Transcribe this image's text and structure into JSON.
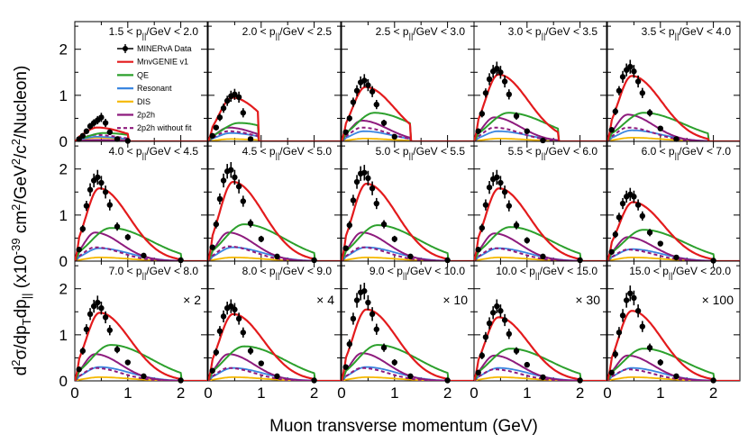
{
  "chart_data": {
    "type": "line",
    "xlabel": "Muon transverse momentum (GeV)",
    "ylabel_parts": [
      "d",
      "2",
      "σ/dp",
      "T",
      "dp",
      "||",
      " (x10",
      "-39",
      " cm",
      "2",
      "/GeV",
      "2",
      "/c",
      "2",
      "/Nucleon)"
    ],
    "x_ticks": [
      "0",
      "1",
      "2"
    ],
    "y_ticks": [
      "0",
      "1",
      "2"
    ],
    "xlim": [
      0,
      2.5
    ],
    "ylim": [
      0,
      2.6
    ],
    "colors": {
      "data": "#000000",
      "mnvgenie": "#e31a1c",
      "qe": "#2ca02c",
      "resonant": "#3a86e0",
      "dis": "#f5b800",
      "twop2h": "#8e1b7d",
      "twop2h_nofit": "#8e1b7d"
    },
    "legend": {
      "placement": "inside first panel, left",
      "entries": [
        {
          "key": "data",
          "label": "MINERvA Data"
        },
        {
          "key": "mnvgenie",
          "label": "MnvGENIE v1"
        },
        {
          "key": "qe",
          "label": "QE"
        },
        {
          "key": "resonant",
          "label": "Resonant"
        },
        {
          "key": "dis",
          "label": "DIS"
        },
        {
          "key": "twop2h",
          "label": "2p2h"
        },
        {
          "key": "twop2h_nofit",
          "label": "2p2h without fit"
        }
      ]
    },
    "x_points": [
      0.08,
      0.15,
      0.22,
      0.29,
      0.36,
      0.43,
      0.5,
      0.58,
      0.66,
      0.8,
      1.0,
      1.3,
      2.0
    ],
    "panels": [
      {
        "label": "1.5 < p",
        "sub": "||",
        "label2": "/GeV < 2.0",
        "scale": "",
        "xmax": 1.0,
        "data": [
          0.05,
          0.12,
          0.22,
          0.33,
          0.4,
          0.46,
          0.52,
          0.4,
          0.2,
          0.05,
          0.01,
          0.0,
          0.0
        ],
        "err": [
          0.03,
          0.04,
          0.05,
          0.07,
          0.08,
          0.09,
          0.1,
          0.09,
          0.06,
          0.03,
          0.01,
          0.0,
          0.0
        ],
        "peak": [
          0.3,
          0.18,
          0.1,
          0.08,
          0.03,
          0.14
        ],
        "pk": [
          0.42,
          0.55,
          0.4,
          0.4,
          0.4,
          0.38
        ]
      },
      {
        "label": "2.0 < p",
        "sub": "||",
        "label2": "/GeV < 2.5",
        "scale": "",
        "xmax": 0.95,
        "data": [
          0.12,
          0.3,
          0.52,
          0.72,
          0.88,
          0.98,
          1.02,
          0.96,
          0.62,
          0.05,
          0.0,
          0.0,
          0.0
        ],
        "err": [
          0.04,
          0.06,
          0.08,
          0.1,
          0.11,
          0.12,
          0.12,
          0.12,
          0.1,
          0.03,
          0.0,
          0.0,
          0.0
        ],
        "peak": [
          0.95,
          0.4,
          0.18,
          0.05,
          0.3,
          0.22
        ],
        "pk": [
          0.45,
          0.58,
          0.42,
          0.42,
          0.38,
          0.38
        ]
      },
      {
        "label": "2.5 < p",
        "sub": "||",
        "label2": "/GeV < 3.0",
        "scale": "",
        "xmax": 1.3,
        "data": [
          0.2,
          0.5,
          0.85,
          1.1,
          1.28,
          1.32,
          1.22,
          1.08,
          0.8,
          0.4,
          0.1,
          0.0,
          0.0
        ],
        "err": [
          0.05,
          0.07,
          0.1,
          0.12,
          0.13,
          0.14,
          0.13,
          0.12,
          0.1,
          0.07,
          0.03,
          0.0,
          0.0
        ],
        "peak": [
          1.18,
          0.62,
          0.22,
          0.06,
          0.45,
          0.3
        ],
        "pk": [
          0.45,
          0.62,
          0.42,
          0.42,
          0.38,
          0.38
        ]
      },
      {
        "label": "3.0 < p",
        "sub": "||",
        "label2": "/GeV < 3.5",
        "scale": "",
        "xmax": 1.6,
        "data": [
          0.22,
          0.6,
          1.05,
          1.35,
          1.52,
          1.58,
          1.5,
          1.3,
          1.02,
          0.55,
          0.22,
          0.02,
          0.0
        ],
        "err": [
          0.05,
          0.08,
          0.1,
          0.13,
          0.14,
          0.15,
          0.14,
          0.13,
          0.11,
          0.08,
          0.05,
          0.02,
          0.0
        ],
        "peak": [
          1.45,
          0.62,
          0.22,
          0.06,
          0.52,
          0.3
        ],
        "pk": [
          0.46,
          0.65,
          0.45,
          0.45,
          0.38,
          0.38
        ]
      },
      {
        "label": "3.5 < p",
        "sub": "||",
        "label2": "/GeV < 4.0",
        "scale": "",
        "xmax": 1.9,
        "data": [
          0.25,
          0.65,
          1.1,
          1.4,
          1.55,
          1.62,
          1.52,
          1.3,
          1.05,
          0.62,
          0.28,
          0.05,
          0.0
        ],
        "err": [
          0.05,
          0.08,
          0.1,
          0.13,
          0.14,
          0.15,
          0.14,
          0.13,
          0.11,
          0.08,
          0.05,
          0.03,
          0.0
        ],
        "peak": [
          1.42,
          0.62,
          0.24,
          0.08,
          0.58,
          0.3
        ],
        "pk": [
          0.46,
          0.68,
          0.46,
          0.46,
          0.38,
          0.38
        ]
      },
      {
        "label": "4.0 < p",
        "sub": "||",
        "label2": "/GeV < 4.5",
        "scale": "",
        "xmax": 2.0,
        "data": [
          0.25,
          0.7,
          1.2,
          1.55,
          1.75,
          1.82,
          1.7,
          1.5,
          1.22,
          0.75,
          0.52,
          0.12,
          0.02
        ],
        "err": [
          0.05,
          0.08,
          0.11,
          0.14,
          0.15,
          0.16,
          0.15,
          0.14,
          0.12,
          0.09,
          0.07,
          0.04,
          0.02
        ],
        "peak": [
          1.58,
          0.72,
          0.28,
          0.08,
          0.62,
          0.3
        ],
        "pk": [
          0.46,
          0.68,
          0.46,
          0.46,
          0.38,
          0.38
        ]
      },
      {
        "label": "4.5 < p",
        "sub": "||",
        "label2": "/GeV < 5.0",
        "scale": "",
        "xmax": 2.0,
        "data": [
          0.3,
          0.8,
          1.35,
          1.75,
          1.95,
          1.98,
          1.82,
          1.62,
          1.3,
          0.82,
          0.48,
          0.1,
          0.02
        ],
        "err": [
          0.05,
          0.09,
          0.12,
          0.15,
          0.16,
          0.17,
          0.16,
          0.15,
          0.12,
          0.09,
          0.07,
          0.04,
          0.02
        ],
        "peak": [
          1.72,
          0.8,
          0.3,
          0.08,
          0.62,
          0.32
        ],
        "pk": [
          0.47,
          0.68,
          0.46,
          0.46,
          0.38,
          0.38
        ]
      },
      {
        "label": "5.0 < p",
        "sub": "||",
        "label2": "/GeV < 5.5",
        "scale": "",
        "xmax": 2.0,
        "data": [
          0.28,
          0.78,
          1.32,
          1.72,
          1.9,
          1.92,
          1.8,
          1.58,
          1.25,
          0.8,
          0.48,
          0.1,
          0.02
        ],
        "err": [
          0.05,
          0.09,
          0.12,
          0.15,
          0.16,
          0.17,
          0.16,
          0.15,
          0.12,
          0.09,
          0.07,
          0.04,
          0.02
        ],
        "peak": [
          1.68,
          0.78,
          0.3,
          0.08,
          0.62,
          0.3
        ],
        "pk": [
          0.47,
          0.68,
          0.46,
          0.46,
          0.38,
          0.38
        ]
      },
      {
        "label": "5.5 < p",
        "sub": "||",
        "label2": "/GeV < 6.0",
        "scale": "",
        "xmax": 2.0,
        "data": [
          0.25,
          0.72,
          1.22,
          1.6,
          1.78,
          1.82,
          1.7,
          1.5,
          1.2,
          0.78,
          0.45,
          0.1,
          0.02
        ],
        "err": [
          0.05,
          0.09,
          0.12,
          0.14,
          0.15,
          0.16,
          0.15,
          0.14,
          0.12,
          0.09,
          0.07,
          0.04,
          0.02
        ],
        "peak": [
          1.58,
          0.74,
          0.28,
          0.08,
          0.6,
          0.28
        ],
        "pk": [
          0.47,
          0.68,
          0.46,
          0.46,
          0.38,
          0.38
        ]
      },
      {
        "label": "6.0 < p",
        "sub": "||",
        "label2": "/GeV < 7.0",
        "scale": "",
        "xmax": 2.0,
        "data": [
          0.2,
          0.58,
          0.95,
          1.25,
          1.4,
          1.45,
          1.4,
          1.22,
          0.98,
          0.62,
          0.38,
          0.08,
          0.01
        ],
        "err": [
          0.04,
          0.08,
          0.1,
          0.12,
          0.13,
          0.14,
          0.13,
          0.12,
          0.1,
          0.08,
          0.06,
          0.03,
          0.01
        ],
        "peak": [
          1.28,
          0.68,
          0.26,
          0.08,
          0.52,
          0.25
        ],
        "pk": [
          0.48,
          0.68,
          0.46,
          0.46,
          0.38,
          0.38
        ]
      },
      {
        "label": "7.0 < p",
        "sub": "||",
        "label2": "/GeV < 8.0",
        "scale": "× 2",
        "xmax": 2.0,
        "data": [
          0.25,
          0.65,
          1.12,
          1.45,
          1.62,
          1.7,
          1.58,
          1.38,
          1.1,
          0.68,
          0.4,
          0.1,
          0.01
        ],
        "err": [
          0.05,
          0.08,
          0.11,
          0.13,
          0.14,
          0.15,
          0.14,
          0.13,
          0.11,
          0.08,
          0.06,
          0.03,
          0.01
        ],
        "peak": [
          1.48,
          0.78,
          0.3,
          0.08,
          0.58,
          0.28
        ],
        "pk": [
          0.47,
          0.68,
          0.46,
          0.46,
          0.38,
          0.38
        ]
      },
      {
        "label": "8.0 < p",
        "sub": "||",
        "label2": "/GeV < 9.0",
        "scale": "× 4",
        "xmax": 2.0,
        "data": [
          0.22,
          0.62,
          1.08,
          1.4,
          1.58,
          1.62,
          1.55,
          1.35,
          1.05,
          0.65,
          0.38,
          0.1,
          0.01
        ],
        "err": [
          0.05,
          0.08,
          0.11,
          0.13,
          0.14,
          0.15,
          0.14,
          0.13,
          0.11,
          0.08,
          0.06,
          0.03,
          0.01
        ],
        "peak": [
          1.45,
          0.75,
          0.28,
          0.08,
          0.58,
          0.28
        ],
        "pk": [
          0.47,
          0.68,
          0.46,
          0.46,
          0.38,
          0.38
        ]
      },
      {
        "label": "9.0 < p",
        "sub": "||",
        "label2": "/GeV < 10.0",
        "scale": "× 10",
        "xmax": 2.0,
        "data": [
          0.3,
          0.8,
          1.35,
          1.75,
          1.92,
          1.95,
          1.7,
          1.45,
          1.12,
          0.72,
          0.4,
          0.1,
          0.01
        ],
        "err": [
          0.06,
          0.1,
          0.13,
          0.16,
          0.17,
          0.18,
          0.16,
          0.15,
          0.12,
          0.09,
          0.07,
          0.04,
          0.01
        ],
        "peak": [
          1.55,
          0.78,
          0.3,
          0.08,
          0.6,
          0.28
        ],
        "pk": [
          0.47,
          0.68,
          0.46,
          0.46,
          0.38,
          0.38
        ]
      },
      {
        "label": "10.0 < p",
        "sub": "||",
        "label2": "/GeV < 15.0",
        "scale": "× 30",
        "xmax": 2.0,
        "data": [
          0.18,
          0.55,
          0.95,
          1.25,
          1.48,
          1.62,
          1.52,
          1.32,
          1.02,
          0.65,
          0.35,
          0.08,
          0.01
        ],
        "err": [
          0.05,
          0.08,
          0.11,
          0.13,
          0.14,
          0.15,
          0.14,
          0.13,
          0.11,
          0.08,
          0.06,
          0.03,
          0.01
        ],
        "peak": [
          1.38,
          0.7,
          0.28,
          0.08,
          0.55,
          0.25
        ],
        "pk": [
          0.46,
          0.68,
          0.46,
          0.46,
          0.38,
          0.38
        ]
      },
      {
        "label": "15.0 < p",
        "sub": "||",
        "label2": "/GeV < 20.0",
        "scale": "× 100",
        "xmax": 2.0,
        "data": [
          0.18,
          0.58,
          1.05,
          1.42,
          1.75,
          1.9,
          1.8,
          1.52,
          1.18,
          0.72,
          0.4,
          0.1,
          0.01
        ],
        "err": [
          0.05,
          0.09,
          0.12,
          0.14,
          0.16,
          0.17,
          0.16,
          0.14,
          0.12,
          0.09,
          0.07,
          0.04,
          0.01
        ],
        "peak": [
          1.52,
          0.7,
          0.28,
          0.08,
          0.55,
          0.25
        ],
        "pk": [
          0.46,
          0.68,
          0.46,
          0.46,
          0.38,
          0.38
        ]
      }
    ]
  }
}
